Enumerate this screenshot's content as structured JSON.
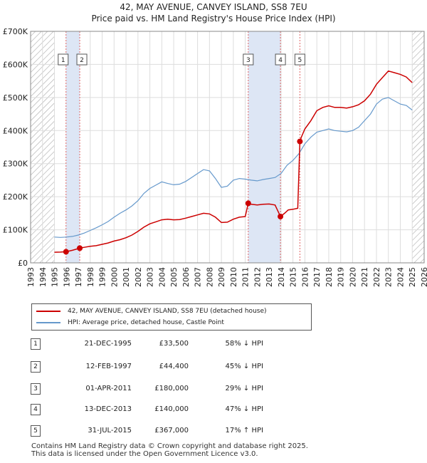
{
  "title_line1": "42, MAY AVENUE, CANVEY ISLAND, SS8 7EU",
  "title_line2": "Price paid vs. HM Land Registry's House Price Index (HPI)",
  "colors": {
    "property": "#cc0000",
    "hpi": "#6699cc",
    "shade": "#dde6f5",
    "marker_line": "#e06666"
  },
  "chart_data": {
    "type": "line",
    "xlim": [
      1993,
      2026
    ],
    "ylim": [
      0,
      700000
    ],
    "y_ticks": [
      0,
      100000,
      200000,
      300000,
      400000,
      500000,
      600000,
      700000
    ],
    "y_tick_labels": [
      "£0",
      "£100K",
      "£200K",
      "£300K",
      "£400K",
      "£500K",
      "£600K",
      "£700K"
    ],
    "x_ticks": [
      1993,
      1994,
      1995,
      1996,
      1997,
      1998,
      1999,
      2000,
      2001,
      2002,
      2003,
      2004,
      2005,
      2006,
      2007,
      2008,
      2009,
      2010,
      2011,
      2012,
      2013,
      2014,
      2015,
      2016,
      2017,
      2018,
      2019,
      2020,
      2021,
      2022,
      2023,
      2024,
      2025,
      2026
    ],
    "hatched_before": 1995.0,
    "hatched_after": 2025.0,
    "shaded_spans": [
      [
        1995.97,
        1997.12
      ],
      [
        2011.25,
        2013.95
      ],
      [
        2015.58,
        2015.58
      ]
    ],
    "series": [
      {
        "name": "42, MAY AVENUE, CANVEY ISLAND, SS8 7EU (detached house)",
        "x": [
          1995.0,
          1995.5,
          1995.97,
          1996.5,
          1997.12,
          1997.5,
          1998.0,
          1998.5,
          1999.0,
          1999.5,
          2000.0,
          2000.5,
          2001.0,
          2001.5,
          2002.0,
          2002.5,
          2003.0,
          2003.5,
          2004.0,
          2004.5,
          2005.0,
          2005.5,
          2006.0,
          2006.5,
          2007.0,
          2007.5,
          2008.0,
          2008.5,
          2009.0,
          2009.5,
          2010.0,
          2010.5,
          2011.0,
          2011.25,
          2011.5,
          2012.0,
          2012.5,
          2013.0,
          2013.5,
          2013.95,
          2014.3,
          2014.6,
          2015.0,
          2015.4,
          2015.58,
          2015.7,
          2016.0,
          2016.5,
          2017.0,
          2017.5,
          2018.0,
          2018.5,
          2019.0,
          2019.5,
          2020.0,
          2020.5,
          2021.0,
          2021.5,
          2022.0,
          2022.5,
          2023.0,
          2023.5,
          2024.0,
          2024.5,
          2025.0
        ],
        "y": [
          32000,
          32500,
          33500,
          38000,
          44400,
          47000,
          50000,
          52000,
          56000,
          60000,
          66000,
          70000,
          76000,
          84000,
          95000,
          108000,
          118000,
          124000,
          130000,
          132000,
          130000,
          131000,
          135000,
          140000,
          145000,
          150000,
          148000,
          138000,
          122000,
          123000,
          132000,
          138000,
          140000,
          180000,
          177000,
          175000,
          177000,
          178000,
          175000,
          140000,
          150000,
          160000,
          162000,
          165000,
          367000,
          380000,
          405000,
          430000,
          460000,
          470000,
          475000,
          470000,
          470000,
          468000,
          472000,
          478000,
          490000,
          510000,
          540000,
          560000,
          580000,
          575000,
          570000,
          562000,
          545000
        ]
      },
      {
        "name": "HPI: Average price, detached house, Castle Point",
        "x": [
          1995.0,
          1995.5,
          1996.0,
          1996.5,
          1997.0,
          1997.5,
          1998.0,
          1998.5,
          1999.0,
          1999.5,
          2000.0,
          2000.5,
          2001.0,
          2001.5,
          2002.0,
          2002.5,
          2003.0,
          2003.5,
          2004.0,
          2004.5,
          2005.0,
          2005.5,
          2006.0,
          2006.5,
          2007.0,
          2007.5,
          2008.0,
          2008.5,
          2009.0,
          2009.5,
          2010.0,
          2010.5,
          2011.0,
          2011.5,
          2012.0,
          2012.5,
          2013.0,
          2013.5,
          2014.0,
          2014.5,
          2015.0,
          2015.5,
          2016.0,
          2016.5,
          2017.0,
          2017.5,
          2018.0,
          2018.5,
          2019.0,
          2019.5,
          2020.0,
          2020.5,
          2021.0,
          2021.5,
          2022.0,
          2022.5,
          2023.0,
          2023.5,
          2024.0,
          2024.5,
          2025.0
        ],
        "y": [
          78000,
          77000,
          78000,
          80000,
          84000,
          90000,
          98000,
          106000,
          115000,
          125000,
          138000,
          150000,
          160000,
          172000,
          188000,
          210000,
          225000,
          235000,
          245000,
          240000,
          236000,
          238000,
          246000,
          258000,
          270000,
          282000,
          278000,
          255000,
          228000,
          232000,
          250000,
          255000,
          253000,
          250000,
          248000,
          252000,
          255000,
          258000,
          270000,
          295000,
          310000,
          330000,
          360000,
          380000,
          395000,
          400000,
          405000,
          400000,
          398000,
          396000,
          400000,
          410000,
          430000,
          450000,
          480000,
          495000,
          500000,
          490000,
          480000,
          476000,
          462000
        ]
      }
    ],
    "transactions": [
      {
        "label": "1",
        "x": 1995.97,
        "y": 33500,
        "date": "21-DEC-1995",
        "price": "£33,500",
        "hpi": "58% ↓ HPI"
      },
      {
        "label": "2",
        "x": 1997.12,
        "y": 44400,
        "date": "12-FEB-1997",
        "price": "£44,400",
        "hpi": "45% ↓ HPI"
      },
      {
        "label": "3",
        "x": 2011.25,
        "y": 180000,
        "date": "01-APR-2011",
        "price": "£180,000",
        "hpi": "29% ↓ HPI"
      },
      {
        "label": "4",
        "x": 2013.95,
        "y": 140000,
        "date": "13-DEC-2013",
        "price": "£140,000",
        "hpi": "47% ↓ HPI"
      },
      {
        "label": "5",
        "x": 2015.58,
        "y": 367000,
        "date": "31-JUL-2015",
        "price": "£367,000",
        "hpi": "17% ↑ HPI"
      }
    ]
  },
  "footer_line1": "Contains HM Land Registry data © Crown copyright and database right 2025.",
  "footer_line2": "This data is licensed under the Open Government Licence v3.0."
}
